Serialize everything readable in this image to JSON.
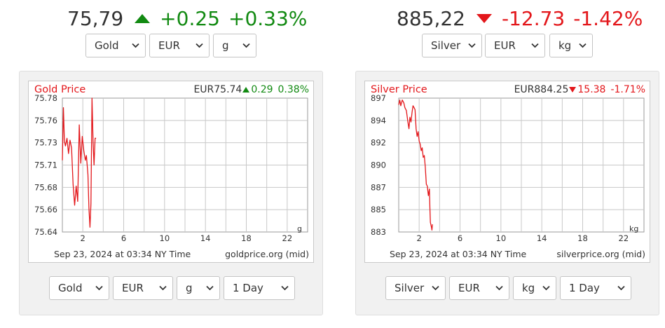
{
  "gold": {
    "header": {
      "price": "75,79",
      "change": "+0.25",
      "change_pct": "+0.33%",
      "direction": "up"
    },
    "top_selects": {
      "metal": "Gold",
      "currency": "EUR",
      "unit": "g"
    },
    "chart": {
      "title": "Gold Price",
      "quote_currency_price": "EUR75.74",
      "quote_change": "0.29",
      "quote_change_pct": "0.38%",
      "unit_label": "g",
      "footer_time": "Sep 23, 2024 at 03:34 NY Time",
      "footer_source": "goldprice.org (mid)"
    },
    "bottom_selects": {
      "metal": "Gold",
      "currency": "EUR",
      "unit": "g",
      "range": "1 Day"
    }
  },
  "silver": {
    "header": {
      "price": "885,22",
      "change": "-12.73",
      "change_pct": "-1.42%",
      "direction": "down"
    },
    "top_selects": {
      "metal": "Silver",
      "currency": "EUR",
      "unit": "kg"
    },
    "chart": {
      "title": "Silver Price",
      "quote_currency_price": "EUR884.25",
      "quote_change": "15.38",
      "quote_change_pct": "-1.71%",
      "unit_label": "kg",
      "footer_time": "Sep 23, 2024 at 03:34 NY Time",
      "footer_source": "silverprice.org (mid)"
    },
    "bottom_selects": {
      "metal": "Silver",
      "currency": "EUR",
      "unit": "kg",
      "range": "1 Day"
    }
  },
  "colors": {
    "up": "#128a12",
    "down": "#e3171b",
    "line": "#e3171b",
    "grid": "#c8c8c8"
  },
  "chart_data": [
    {
      "type": "line",
      "title": "Gold Price",
      "xlabel": "",
      "ylabel": "",
      "x_ticks": [
        2,
        6,
        10,
        14,
        18,
        22
      ],
      "y_ticks": [
        "75.78",
        "75.76",
        "75.73",
        "75.71",
        "75.68",
        "75.66",
        "75.64"
      ],
      "xlim": [
        0,
        24
      ],
      "ylim": [
        75.64,
        75.78
      ],
      "grid": true,
      "series": [
        {
          "x": [
            0.0,
            0.1,
            0.2,
            0.3,
            0.45,
            0.6,
            0.75,
            0.9,
            1.05,
            1.2,
            1.35,
            1.5,
            1.65,
            1.8,
            1.95,
            2.1,
            2.25,
            2.35,
            2.5,
            2.6,
            2.7,
            2.8,
            2.9,
            3.0,
            3.1,
            3.2,
            3.3
          ],
          "y": [
            75.715,
            75.77,
            75.735,
            75.73,
            75.738,
            75.722,
            75.736,
            75.728,
            75.69,
            75.668,
            75.688,
            75.672,
            75.752,
            75.712,
            75.74,
            75.725,
            75.715,
            75.72,
            75.7,
            75.665,
            75.645,
            75.67,
            75.78,
            75.735,
            75.71,
            75.738,
            75.738
          ]
        }
      ]
    },
    {
      "type": "line",
      "title": "Silver Price",
      "xlabel": "",
      "ylabel": "",
      "x_ticks": [
        2,
        6,
        10,
        14,
        18,
        22
      ],
      "y_ticks": [
        "897",
        "894",
        "892",
        "890",
        "887",
        "885",
        "883"
      ],
      "xlim": [
        0,
        24
      ],
      "ylim": [
        883,
        897
      ],
      "grid": true,
      "series": [
        {
          "x": [
            0.0,
            0.1,
            0.2,
            0.35,
            0.5,
            0.6,
            0.75,
            0.9,
            1.0,
            1.1,
            1.2,
            1.3,
            1.4,
            1.5,
            1.6,
            1.7,
            1.8,
            1.9,
            2.0,
            2.1,
            2.2,
            2.3,
            2.4,
            2.5,
            2.6,
            2.7,
            2.8,
            2.9,
            3.0,
            3.05,
            3.1,
            3.2,
            3.25,
            3.3
          ],
          "y": [
            896.3,
            896.8,
            896.2,
            896.8,
            896.5,
            896.0,
            895.7,
            894.5,
            893.8,
            895.0,
            894.5,
            895.5,
            896.2,
            896.0,
            895.8,
            893.8,
            893.0,
            893.5,
            892.5,
            892.2,
            891.5,
            891.8,
            890.8,
            891.0,
            889.8,
            888.0,
            887.8,
            886.8,
            887.5,
            885.5,
            884.0,
            883.5,
            883.2,
            883.8
          ]
        }
      ]
    }
  ]
}
